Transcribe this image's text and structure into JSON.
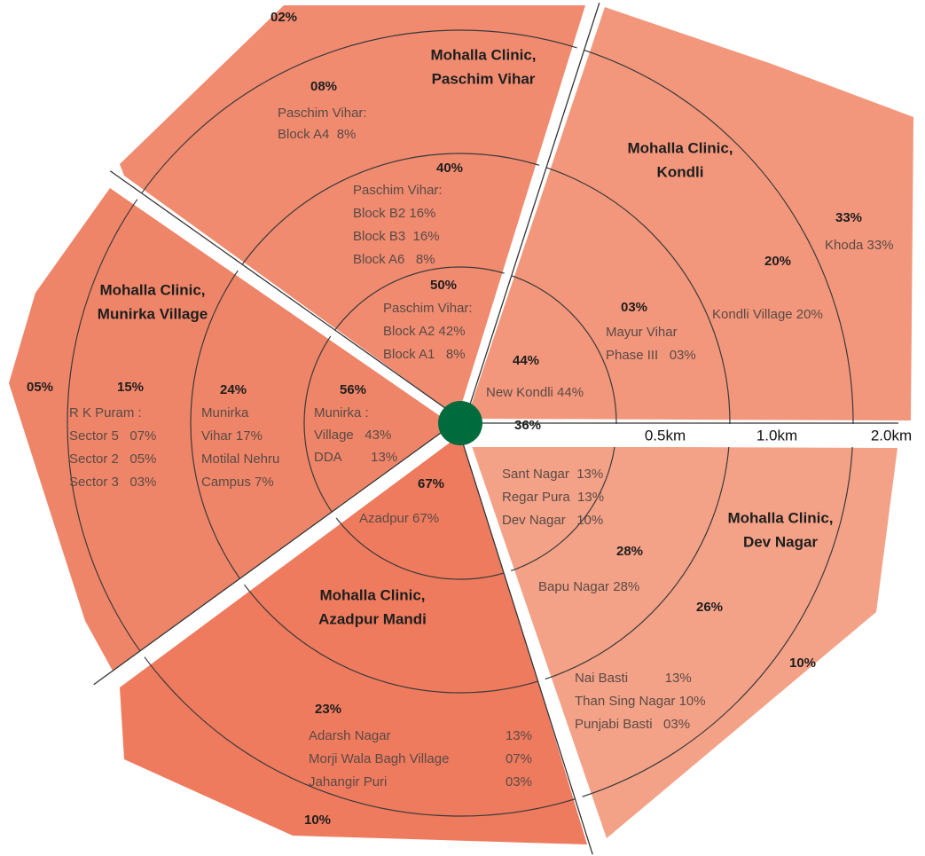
{
  "sectors": [
    {
      "title": [
        "Mohalla Clinic,",
        "Paschim Vihar"
      ],
      "outer": "02%",
      "groups": [
        {
          "percent": "08%",
          "lines": [
            "Paschim Vihar:",
            "Block A4  8%"
          ]
        },
        {
          "percent": "40%",
          "lines": [
            "Paschim Vihar:",
            "Block B2 16%",
            "Block B3  16%",
            "Block A6   8%"
          ]
        },
        {
          "percent": "50%",
          "lines": [
            "Paschim Vihar:",
            "Block A2 42%",
            "Block A1   8%"
          ]
        }
      ]
    },
    {
      "title": [
        "Mohalla Clinic,",
        "Kondli"
      ],
      "outer": "33%",
      "groups": [
        {
          "percent": "44%",
          "lines": [
            "New Kondli 44%"
          ]
        },
        {
          "percent": "03%",
          "lines": [
            "Mayur Vihar",
            "Phase III   03%"
          ]
        },
        {
          "percent": "20%",
          "lines": [
            "Kondli Village 20%"
          ]
        },
        {
          "percent": "33%",
          "lines": [
            "Khoda 33%"
          ]
        }
      ]
    },
    {
      "title": [
        "Mohalla Clinic,",
        "Dev Nagar"
      ],
      "outer": "10%",
      "groups": [
        {
          "percent": "36%",
          "lines": [
            "Sant Nagar  13%",
            "Regar Pura  13%",
            "Dev Nagar   10%"
          ]
        },
        {
          "percent": "28%",
          "lines": [
            "Bapu Nagar 28%"
          ]
        },
        {
          "percent": "26%",
          "lines": [
            "Nai Basti          13%",
            "Than Sing Nagar 10%",
            "Punjabi Basti   03%"
          ]
        }
      ]
    },
    {
      "title": [
        "Mohalla Clinic,",
        "Azadpur Mandi"
      ],
      "outer": "10%",
      "groups": [
        {
          "percent": "67%",
          "lines": [
            "Azadpur 67%"
          ]
        },
        {
          "percent": "23%",
          "lines": [
            {
              "label": "Adarsh Nagar",
              "share": "13%"
            },
            {
              "label": "Morji Wala Bagh Village",
              "share": "07%"
            },
            {
              "label": "Jahangir Puri",
              "share": "03%"
            }
          ]
        }
      ]
    },
    {
      "title": [
        "Mohalla Clinic,",
        "Munirka Village"
      ],
      "outer": "05%",
      "groups": [
        {
          "percent": "56%",
          "lines": [
            "Munirka :",
            "Village   43%",
            "DDA        13%"
          ]
        },
        {
          "percent": "24%",
          "lines": [
            "Munirka",
            "Vihar 17%",
            "Motilal Nehru",
            "Campus 7%"
          ]
        },
        {
          "percent": "15%",
          "lines": [
            "R K Puram :",
            "Sector 5   07%",
            "Sector 2   05%",
            "Sector 3   03%"
          ]
        }
      ]
    }
  ],
  "scale": [
    "0.5km",
    "1.0km",
    "2.0km"
  ]
}
